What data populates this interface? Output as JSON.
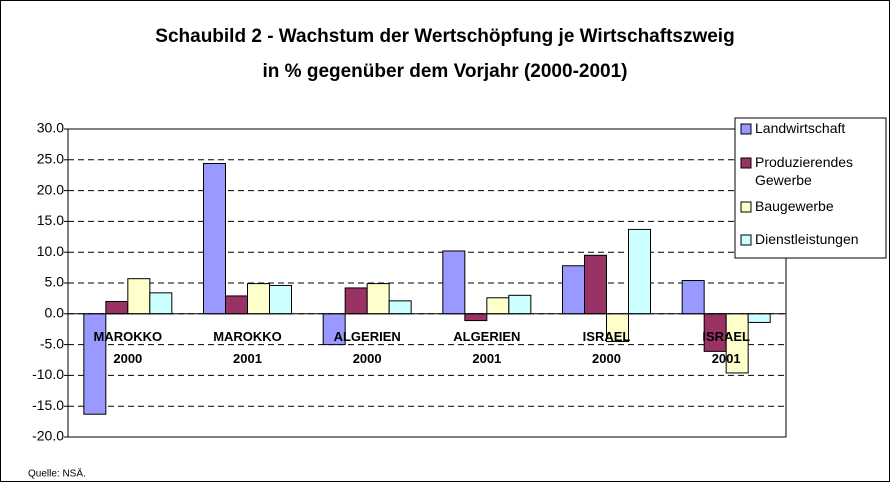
{
  "chart_data": {
    "type": "bar",
    "title": "Schaubild 2 - Wachstum der Wertschöpfung je Wirtschaftszweig",
    "subtitle": "in % gegenüber dem Vorjahr (2000-2001)",
    "categories": [
      "MAROKKO 2000",
      "MAROKKO 2001",
      "ALGERIEN 2000",
      "ALGERIEN 2001",
      "ISRAEL 2000",
      "ISRAEL 2001"
    ],
    "series": [
      {
        "name": "Landwirtschaft",
        "color": "#9999ff",
        "values": [
          -16.3,
          24.4,
          -5.0,
          10.2,
          7.8,
          5.4
        ]
      },
      {
        "name": "Produzierendes Gewerbe",
        "color": "#993366",
        "values": [
          2.0,
          2.9,
          4.2,
          -1.1,
          9.5,
          -6.1
        ]
      },
      {
        "name": "Baugewerbe",
        "color": "#ffffcc",
        "values": [
          5.7,
          4.9,
          4.9,
          2.6,
          -4.5,
          -9.6
        ]
      },
      {
        "name": "Dienstleistungen",
        "color": "#ccffff",
        "values": [
          3.4,
          4.6,
          2.1,
          3.0,
          13.7,
          -1.4
        ]
      }
    ],
    "ylim": [
      -20,
      30
    ],
    "yticks": [
      {
        "value": -20,
        "label": "-20.0"
      },
      {
        "value": -15,
        "label": "-15.0"
      },
      {
        "value": -10,
        "label": "-10.0"
      },
      {
        "value": -5,
        "label": "-5.0"
      },
      {
        "value": 0,
        "label": "0.0"
      },
      {
        "value": 5,
        "label": "5.0"
      },
      {
        "value": 10,
        "label": "10.0"
      },
      {
        "value": 15,
        "label": "15.0"
      },
      {
        "value": 20,
        "label": "20.0"
      },
      {
        "value": 25,
        "label": "25.0"
      },
      {
        "value": 30,
        "label": "30.0"
      }
    ],
    "grid": true,
    "legend": "right",
    "source": "Quelle: NSÄ."
  }
}
